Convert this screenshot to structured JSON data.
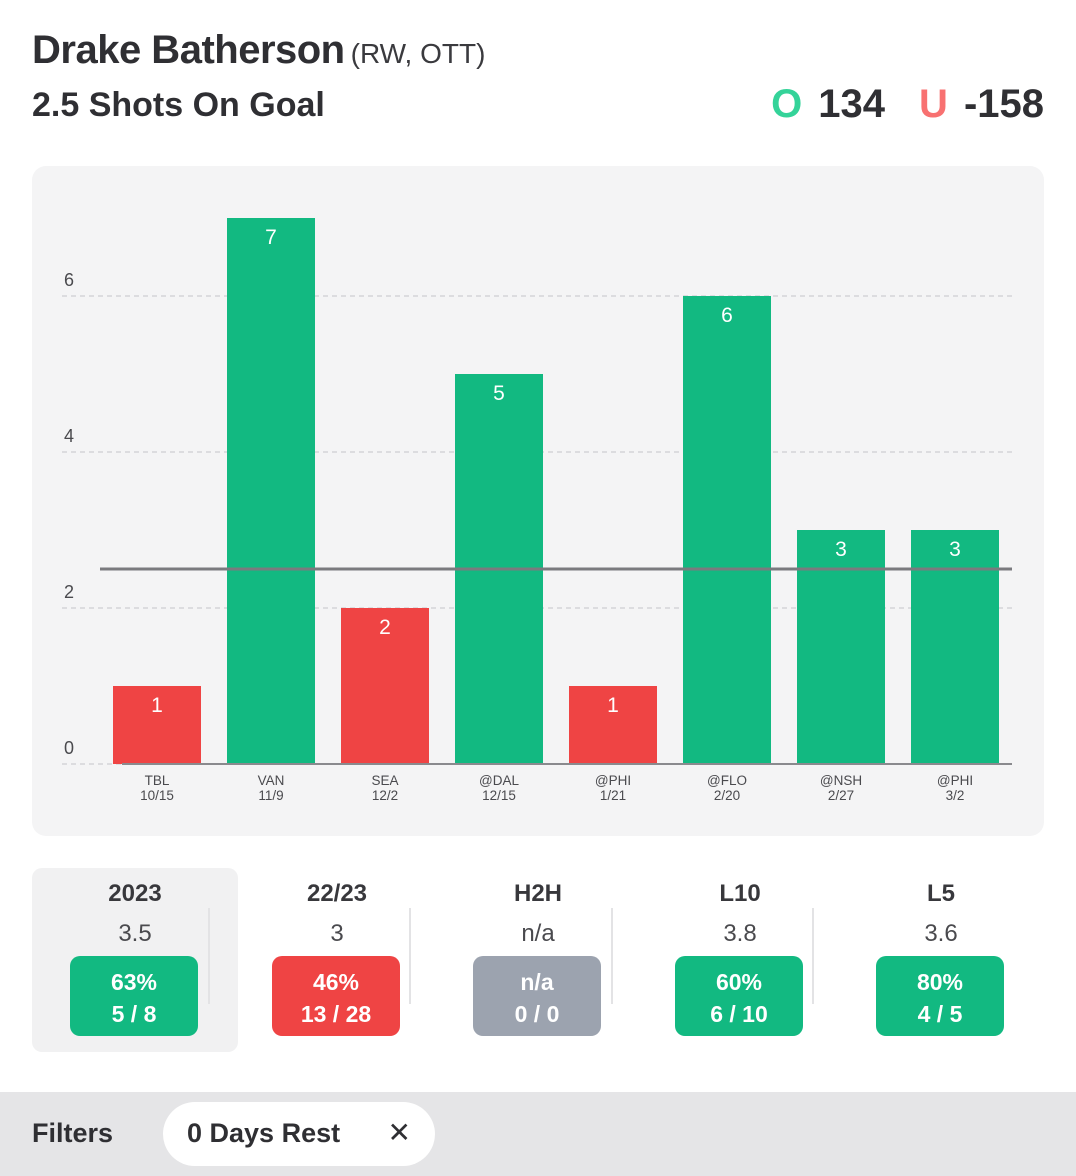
{
  "header": {
    "player_name": "Drake Batherson",
    "player_meta": "(RW, OTT)",
    "prop_title": "2.5 Shots On Goal",
    "over_letter": "O",
    "over_odds": "134",
    "under_letter": "U",
    "under_odds": "-158"
  },
  "colors": {
    "over": "#12b981",
    "under": "#ef4444",
    "neutral": "#9ca3af",
    "over_letter": "#34d399",
    "under_letter": "#f87171"
  },
  "chart_data": {
    "type": "bar",
    "title": "2.5 Shots On Goal",
    "categories": [
      "TBL",
      "VAN",
      "SEA",
      "@DAL",
      "@PHI",
      "@FLO",
      "@NSH",
      "@PHI"
    ],
    "dates": [
      "10/15",
      "11/9",
      "12/2",
      "12/15",
      "1/21",
      "2/20",
      "2/27",
      "3/2"
    ],
    "values": [
      1,
      7,
      2,
      5,
      1,
      6,
      3,
      3
    ],
    "line": 2.5,
    "yticks": [
      0,
      2,
      4,
      6
    ],
    "ylim": [
      0,
      7
    ],
    "grid": true,
    "xlabel": "",
    "ylabel": ""
  },
  "stats": [
    {
      "label": "2023",
      "value": "3.5",
      "pct": "63%",
      "record": "5 / 8",
      "status": "over",
      "active": true
    },
    {
      "label": "22/23",
      "value": "3",
      "pct": "46%",
      "record": "13 / 28",
      "status": "under",
      "active": false
    },
    {
      "label": "H2H",
      "value": "n/a",
      "pct": "n/a",
      "record": "0 / 0",
      "status": "neutral",
      "active": false
    },
    {
      "label": "L10",
      "value": "3.8",
      "pct": "60%",
      "record": "6 / 10",
      "status": "over",
      "active": false
    },
    {
      "label": "L5",
      "value": "3.6",
      "pct": "80%",
      "record": "4 / 5",
      "status": "over",
      "active": false
    }
  ],
  "filters": {
    "label": "Filters",
    "chip_label": "0 Days Rest",
    "chip_close_icon": "close-icon",
    "chip_close_glyph": "✕"
  }
}
